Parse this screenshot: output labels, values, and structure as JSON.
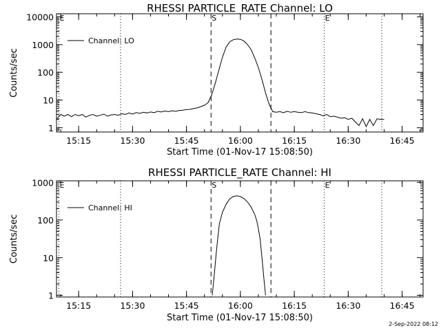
{
  "footer": {
    "timestamp": "2-Sep-2022 08:12"
  },
  "chart_data": [
    {
      "type": "line",
      "title": "RHESSI PARTICLE_RATE Channel: LO",
      "xlabel": "Start Time (01-Nov-17 15:08:50)",
      "ylabel": "Counts/sec",
      "y_scale": "log",
      "ylim": [
        0.7,
        13000
      ],
      "xlim": [
        "15:08:50",
        "16:50:50"
      ],
      "y_ticks": [
        {
          "value": 1,
          "label": "1"
        },
        {
          "value": 10,
          "label": "10"
        },
        {
          "value": 100,
          "label": "100"
        },
        {
          "value": 1000,
          "label": "1000"
        },
        {
          "value": 10000,
          "label": "10000"
        }
      ],
      "x_ticks": [
        {
          "value": "15:15",
          "label": "15:15"
        },
        {
          "value": "15:30",
          "label": "15:30"
        },
        {
          "value": "15:45",
          "label": "15:45"
        },
        {
          "value": "16:00",
          "label": "16:00"
        },
        {
          "value": "16:15",
          "label": "16:15"
        },
        {
          "value": "16:30",
          "label": "16:30"
        },
        {
          "value": "16:45",
          "label": "16:45"
        }
      ],
      "legend": {
        "position": "top-left",
        "label": "Channel: LO"
      },
      "markers": [
        {
          "time": "15:09:30",
          "style": "dotted",
          "label": "E"
        },
        {
          "time": "15:26:40",
          "style": "dotted",
          "label": ""
        },
        {
          "time": "15:51:50",
          "style": "dashed",
          "label": "S"
        },
        {
          "time": "16:08:30",
          "style": "dashed",
          "label": ""
        },
        {
          "time": "16:23:20",
          "style": "dotted",
          "label": "E"
        },
        {
          "time": "16:39:20",
          "style": "dotted",
          "label": ""
        }
      ],
      "series": [
        {
          "name": "Channel: LO",
          "x": [
            "15:08:50",
            "15:10:00",
            "15:11:00",
            "15:12:00",
            "15:13:00",
            "15:14:00",
            "15:15:00",
            "15:16:00",
            "15:17:00",
            "15:18:00",
            "15:19:00",
            "15:20:00",
            "15:21:00",
            "15:22:00",
            "15:23:00",
            "15:24:00",
            "15:25:00",
            "15:26:00",
            "15:27:00",
            "15:28:00",
            "15:29:00",
            "15:30:00",
            "15:31:00",
            "15:32:00",
            "15:33:00",
            "15:34:00",
            "15:35:00",
            "15:36:00",
            "15:37:00",
            "15:38:00",
            "15:39:00",
            "15:40:00",
            "15:41:00",
            "15:42:00",
            "15:43:00",
            "15:44:00",
            "15:45:00",
            "15:46:00",
            "15:47:00",
            "15:48:00",
            "15:49:00",
            "15:50:00",
            "15:51:00",
            "15:52:00",
            "15:53:00",
            "15:54:00",
            "15:55:00",
            "15:56:00",
            "15:57:00",
            "15:58:00",
            "15:59:00",
            "16:00:00",
            "16:01:00",
            "16:02:00",
            "16:03:00",
            "16:04:00",
            "16:05:00",
            "16:06:00",
            "16:07:00",
            "16:08:00",
            "16:09:00",
            "16:10:00",
            "16:11:00",
            "16:12:00",
            "16:13:00",
            "16:14:00",
            "16:15:00",
            "16:16:00",
            "16:17:00",
            "16:18:00",
            "16:19:00",
            "16:20:00",
            "16:21:00",
            "16:22:00",
            "16:23:00",
            "16:24:00",
            "16:25:00",
            "16:26:00",
            "16:27:00",
            "16:28:00",
            "16:29:00",
            "16:30:00",
            "16:31:00",
            "16:32:00",
            "16:33:00",
            "16:34:00",
            "16:35:00",
            "16:36:00",
            "16:37:00",
            "16:38:00",
            "16:39:00",
            "16:40:00"
          ],
          "y": [
            2,
            3,
            2.6,
            3,
            2.5,
            3,
            2.7,
            3,
            2.4,
            2.8,
            3,
            2.6,
            2.8,
            3.1,
            2.6,
            2.9,
            3,
            2.8,
            3.2,
            3,
            3.4,
            3.1,
            3.5,
            3.3,
            3.6,
            3.4,
            3.7,
            3.5,
            3.9,
            3.7,
            4,
            3.8,
            4.1,
            3.9,
            4.2,
            4.3,
            4.5,
            4.6,
            4.9,
            5.2,
            5.8,
            6.5,
            8,
            15,
            40,
            120,
            350,
            800,
            1250,
            1500,
            1600,
            1550,
            1350,
            1000,
            650,
            330,
            150,
            55,
            18,
            7,
            3.8,
            3.6,
            3.8,
            3.5,
            3.9,
            3.6,
            3.8,
            3.6,
            3.5,
            3.8,
            3.5,
            3.4,
            3.2,
            3,
            2.7,
            3,
            2.5,
            2.6,
            2.4,
            2.2,
            2.3,
            2,
            2.2,
            1.6,
            1.2,
            2.1,
            1.1,
            2,
            1.2,
            2.1,
            2,
            2
          ]
        }
      ]
    },
    {
      "type": "line",
      "title": "RHESSI PARTICLE_RATE Channel: HI",
      "xlabel": "Start Time (01-Nov-17 15:08:50)",
      "ylabel": "Counts/sec",
      "y_scale": "log",
      "ylim": [
        0.9,
        1100
      ],
      "xlim": [
        "15:08:50",
        "16:50:50"
      ],
      "y_ticks": [
        {
          "value": 1,
          "label": "1"
        },
        {
          "value": 10,
          "label": "10"
        },
        {
          "value": 100,
          "label": "100"
        },
        {
          "value": 1000,
          "label": "1000"
        }
      ],
      "x_ticks": [
        {
          "value": "15:15",
          "label": "15:15"
        },
        {
          "value": "15:30",
          "label": "15:30"
        },
        {
          "value": "15:45",
          "label": "15:45"
        },
        {
          "value": "16:00",
          "label": "16:00"
        },
        {
          "value": "16:15",
          "label": "16:15"
        },
        {
          "value": "16:30",
          "label": "16:30"
        },
        {
          "value": "16:45",
          "label": "16:45"
        }
      ],
      "legend": {
        "position": "top-left",
        "label": "Channel: HI"
      },
      "markers": [
        {
          "time": "15:09:30",
          "style": "dotted",
          "label": "E"
        },
        {
          "time": "15:26:40",
          "style": "dotted",
          "label": ""
        },
        {
          "time": "15:51:50",
          "style": "dashed",
          "label": "S"
        },
        {
          "time": "16:08:30",
          "style": "dashed",
          "label": ""
        },
        {
          "time": "16:23:20",
          "style": "dotted",
          "label": "E"
        },
        {
          "time": "16:39:20",
          "style": "dotted",
          "label": ""
        }
      ],
      "series": [
        {
          "name": "Channel: HI",
          "x": [
            "15:52:10",
            "15:52:40",
            "15:53:10",
            "15:53:40",
            "15:54:10",
            "15:55:00",
            "15:56:00",
            "15:57:00",
            "15:58:00",
            "15:59:00",
            "16:00:00",
            "16:01:00",
            "16:02:00",
            "16:03:00",
            "16:04:00",
            "16:04:30",
            "16:05:00",
            "16:05:30",
            "16:06:00",
            "16:06:30",
            "16:07:00"
          ],
          "y": [
            1,
            3,
            10,
            30,
            80,
            160,
            260,
            360,
            420,
            440,
            420,
            370,
            300,
            220,
            140,
            100,
            60,
            30,
            10,
            3,
            1
          ]
        }
      ]
    }
  ]
}
